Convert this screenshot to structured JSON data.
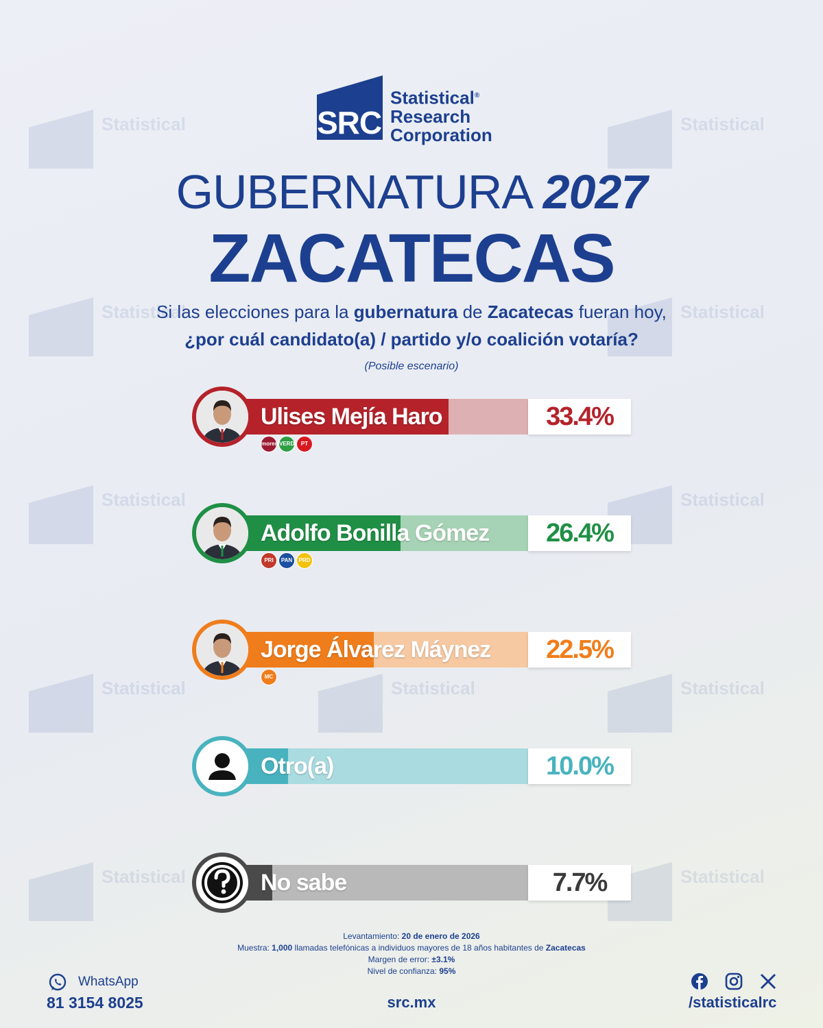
{
  "brand": {
    "logo_mark": "SRC",
    "name_lines": [
      "Statistical",
      "Research",
      "Corporation"
    ],
    "registered": "®",
    "color": "#1d3f8f"
  },
  "header": {
    "title_light": "GUBERNATURA",
    "title_year": "2027",
    "state": "ZACATECAS"
  },
  "question": {
    "line1_parts": [
      "Si las elecciones para la ",
      "gubernatura",
      " de ",
      "Zacatecas",
      " fueran hoy,"
    ],
    "line2": "¿por cuál candidato(a) / partido y/o coalición votaría?",
    "note": "(Posible escenario)"
  },
  "chart_data": {
    "type": "bar",
    "categories": [
      "Ulises Mejía Haro",
      "Adolfo Bonilla Gómez",
      "Jorge Álvarez Máynez",
      "Otro(a)",
      "No sabe"
    ],
    "values": [
      33.4,
      26.4,
      22.5,
      10.0,
      7.7
    ],
    "value_labels": [
      "33.4%",
      "26.4%",
      "22.5%",
      "10.0%",
      "7.7%"
    ],
    "colors": [
      "#b5222a",
      "#1f8f45",
      "#f07d1b",
      "#48b3bf",
      "#4a4a4a"
    ],
    "light_colors": [
      "#ddb0b4",
      "#a6d3b5",
      "#f6c9a2",
      "#a9dbe0",
      "#b9b9b9"
    ],
    "pct_colors": [
      "#b5222a",
      "#1f8f45",
      "#f07d1b",
      "#48b3bf",
      "#3a3a3a"
    ],
    "avatar_icons": [
      "candidate-photo-icon",
      "candidate-photo-icon",
      "candidate-photo-icon",
      "person-silhouette-icon",
      "question-mark-icon"
    ],
    "parties": [
      [
        {
          "label": "morena",
          "color": "#9b1b30"
        },
        {
          "label": "VERDE",
          "color": "#2f9e44"
        },
        {
          "label": "PT",
          "color": "#d71920"
        }
      ],
      [
        {
          "label": "PRI",
          "color": "#c0392b"
        },
        {
          "label": "PAN",
          "color": "#1b4fa0"
        },
        {
          "label": "PRD",
          "color": "#f4c20d"
        }
      ],
      [
        {
          "label": "MC",
          "color": "#f07d1b"
        }
      ],
      [],
      []
    ],
    "xlim": [
      0,
      45
    ],
    "ylabel": "",
    "xlabel": "",
    "title": ""
  },
  "methodology": {
    "fieldwork_label": "Levantamiento:",
    "fieldwork_value": "20 de enero de 2026",
    "sample_label": "Muestra:",
    "sample_value": "1,000",
    "sample_text": "llamadas telefónicas a individuos mayores de 18 años habitantes de",
    "sample_place": "Zacatecas",
    "margin_label": "Margen de error:",
    "margin_value": "±3.1%",
    "confidence_label": "Nivel de confianza:",
    "confidence_value": "95%"
  },
  "footer": {
    "whatsapp_label": "WhatsApp",
    "whatsapp_number": "81 3154 8025",
    "website": "src.mx",
    "social_handle": "/statisticalrc",
    "social_icons": [
      "facebook-icon",
      "instagram-icon",
      "x-icon"
    ]
  }
}
